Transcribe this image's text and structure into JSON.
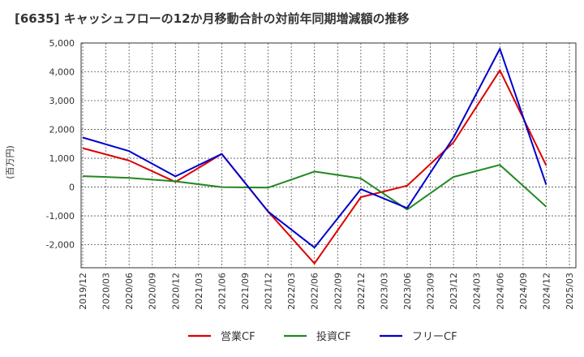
{
  "chart_data": {
    "type": "line",
    "title": "[6635]  キャッシュフローの12か月移動合計の対前年同期増減額の推移",
    "ylabel": "(百万円)",
    "ylim": [
      -2800,
      5000
    ],
    "yticks": [
      5000,
      4000,
      3000,
      2000,
      1000,
      0,
      -1000,
      -2000
    ],
    "ytick_labels": [
      "5,000",
      "4,000",
      "3,000",
      "2,000",
      "1,000",
      "0",
      "-1,000",
      "-2,000"
    ],
    "x_ticks": [
      "2019/12",
      "2020/03",
      "2020/06",
      "2020/09",
      "2020/12",
      "2021/03",
      "2021/06",
      "2021/09",
      "2021/12",
      "2022/03",
      "2022/06",
      "2022/09",
      "2022/12",
      "2023/03",
      "2023/06",
      "2023/09",
      "2023/12",
      "2024/03",
      "2024/06",
      "2024/09",
      "2024/12",
      "2025/03"
    ],
    "grid": true,
    "legend_position": "bottom-center",
    "series": [
      {
        "name": "営業CF",
        "color": "#dd0000",
        "points": [
          {
            "x": "2019/12",
            "y": 1350
          },
          {
            "x": "2020/06",
            "y": 920
          },
          {
            "x": "2020/12",
            "y": 180
          },
          {
            "x": "2021/06",
            "y": 1150
          },
          {
            "x": "2021/12",
            "y": -850
          },
          {
            "x": "2022/06",
            "y": -2650
          },
          {
            "x": "2022/12",
            "y": -350
          },
          {
            "x": "2023/06",
            "y": 50
          },
          {
            "x": "2023/12",
            "y": 1550
          },
          {
            "x": "2024/06",
            "y": 4050
          },
          {
            "x": "2024/12",
            "y": 750
          }
        ]
      },
      {
        "name": "投資CF",
        "color": "#228822",
        "points": [
          {
            "x": "2019/12",
            "y": 380
          },
          {
            "x": "2020/06",
            "y": 320
          },
          {
            "x": "2020/12",
            "y": 200
          },
          {
            "x": "2021/06",
            "y": 0
          },
          {
            "x": "2021/12",
            "y": -20
          },
          {
            "x": "2022/06",
            "y": 540
          },
          {
            "x": "2022/12",
            "y": 300
          },
          {
            "x": "2023/06",
            "y": -780
          },
          {
            "x": "2023/12",
            "y": 350
          },
          {
            "x": "2024/06",
            "y": 770
          },
          {
            "x": "2024/12",
            "y": -680
          }
        ]
      },
      {
        "name": "フリーCF",
        "color": "#0000cc",
        "points": [
          {
            "x": "2019/12",
            "y": 1720
          },
          {
            "x": "2020/06",
            "y": 1250
          },
          {
            "x": "2020/12",
            "y": 370
          },
          {
            "x": "2021/06",
            "y": 1150
          },
          {
            "x": "2021/12",
            "y": -850
          },
          {
            "x": "2022/06",
            "y": -2100
          },
          {
            "x": "2022/12",
            "y": -70
          },
          {
            "x": "2023/06",
            "y": -730
          },
          {
            "x": "2023/12",
            "y": 1720
          },
          {
            "x": "2024/06",
            "y": 4800
          },
          {
            "x": "2024/12",
            "y": 80
          }
        ]
      }
    ]
  }
}
